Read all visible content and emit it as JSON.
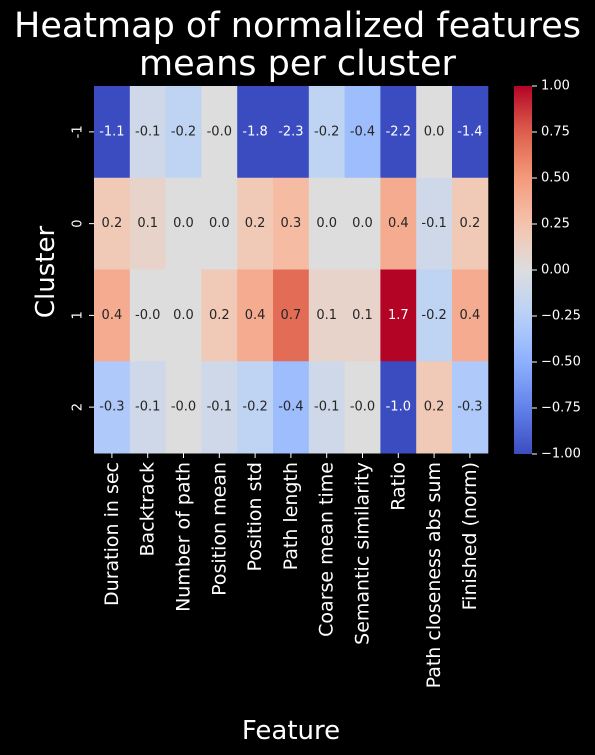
{
  "chart_data": {
    "type": "heatmap",
    "title_lines": [
      "Heatmap of normalized features",
      "means per cluster"
    ],
    "xlabel": "Feature",
    "ylabel": "Cluster",
    "columns": [
      "Duration in sec",
      "Backtrack",
      "Number of path",
      "Position mean",
      "Position std",
      "Path length",
      "Coarse mean time",
      "Semantic similarity",
      "Ratio",
      "Path closeness abs sum",
      "Finished (norm)"
    ],
    "rows": [
      "-1",
      "0",
      "1",
      "2"
    ],
    "values": [
      [
        -1.1,
        -0.1,
        -0.2,
        -0.0,
        -1.8,
        -2.3,
        -0.2,
        -0.4,
        -2.2,
        0.0,
        -1.4
      ],
      [
        0.2,
        0.1,
        0.0,
        0.0,
        0.2,
        0.3,
        0.0,
        0.0,
        0.4,
        -0.1,
        0.2
      ],
      [
        0.4,
        -0.0,
        0.0,
        0.2,
        0.4,
        0.7,
        0.1,
        0.1,
        1.7,
        -0.2,
        0.4
      ],
      [
        -0.3,
        -0.1,
        -0.0,
        -0.1,
        -0.2,
        -0.4,
        -0.1,
        -0.0,
        -1.0,
        0.2,
        -0.3
      ]
    ],
    "value_labels": [
      [
        "-1.1",
        "-0.1",
        "-0.2",
        "-0.0",
        "-1.8",
        "-2.3",
        "-0.2",
        "-0.4",
        "-2.2",
        "0.0",
        "-1.4"
      ],
      [
        "0.2",
        "0.1",
        "0.0",
        "0.0",
        "0.2",
        "0.3",
        "0.0",
        "0.0",
        "0.4",
        "-0.1",
        "0.2"
      ],
      [
        "0.4",
        "-0.0",
        "0.0",
        "0.2",
        "0.4",
        "0.7",
        "0.1",
        "0.1",
        "1.7",
        "-0.2",
        "0.4"
      ],
      [
        "-0.3",
        "-0.1",
        "-0.0",
        "-0.1",
        "-0.2",
        "-0.4",
        "-0.1",
        "-0.0",
        "-1.0",
        "0.2",
        "-0.3"
      ]
    ],
    "colormap": "coolwarm",
    "vmin": -1.0,
    "vmax": 1.0,
    "colorbar_ticks": [
      "1.00",
      "0.75",
      "0.50",
      "0.25",
      "0.00",
      "−0.25",
      "−0.50",
      "−0.75",
      "−1.00"
    ],
    "colorbar_tick_values": [
      1.0,
      0.75,
      0.5,
      0.25,
      0.0,
      -0.25,
      -0.5,
      -0.75,
      -1.0
    ],
    "colors": {
      "background": "#000000",
      "text": "#ffffff",
      "low": "#3b4cc0",
      "mid": "#dddddd",
      "high": "#b40426"
    }
  }
}
